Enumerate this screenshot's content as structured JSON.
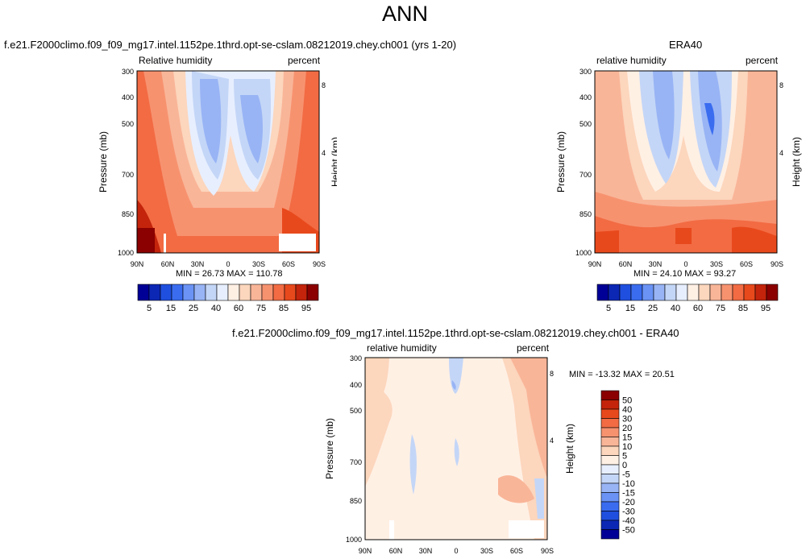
{
  "title": "ANN",
  "panels": [
    {
      "title": "f.e21.F2000climo.f09_f09_mg17.intel.1152pe.1thrd.opt-se-cslam.08212019.chey.ch001 (yrs 1-20)",
      "left_label": "Relative humidity",
      "right_label": "percent",
      "min_max": "MIN =  26.73   MAX = 110.78"
    },
    {
      "title": "ERA40",
      "left_label": "relative humidity",
      "right_label": "percent",
      "min_max": "MIN =  24.10   MAX =  93.27"
    },
    {
      "title": "f.e21.F2000climo.f09_f09_mg17.intel.1152pe.1thrd.opt-se-cslam.08212019.chey.ch001 - ERA40",
      "left_label": "relative humidity",
      "right_label": "percent",
      "min_max": "MIN = -13.32   MAX =  20.51"
    }
  ],
  "axes": {
    "ylabel": "Pressure (mb)",
    "y2label": "Height (km)",
    "x_ticks": [
      "90N",
      "60N",
      "30N",
      "0",
      "30S",
      "60S",
      "90S"
    ],
    "y_ticks": [
      "300",
      "400",
      "500",
      "700",
      "850",
      "1000"
    ],
    "y2_ticks": [
      "8",
      "4"
    ]
  },
  "colorbar_abs": {
    "labels": [
      "5",
      "15",
      "25",
      "40",
      "60",
      "75",
      "85",
      "95"
    ],
    "colors": [
      "#000096",
      "#0c27b4",
      "#1f4fde",
      "#3a6cf0",
      "#6a93f5",
      "#98b4f5",
      "#c4d6f7",
      "#e7efff",
      "#fff0e4",
      "#fcd6bd",
      "#f9b598",
      "#f7926f",
      "#f26b43",
      "#e8491c",
      "#c3240b",
      "#8b0000"
    ]
  },
  "colorbar_diff": {
    "labels": [
      "50",
      "40",
      "30",
      "20",
      "15",
      "10",
      "5",
      "0",
      "-5",
      "-10",
      "-15",
      "-20",
      "-30",
      "-40",
      "-50"
    ],
    "colors": [
      "#8b0000",
      "#c3240b",
      "#e8491c",
      "#f26b43",
      "#f7926f",
      "#f9b598",
      "#fcd6bd",
      "#fff0e4",
      "#e7efff",
      "#c4d6f7",
      "#98b4f5",
      "#6a93f5",
      "#3a6cf0",
      "#1f4fde",
      "#0c27b4",
      "#000096"
    ]
  },
  "chart_data": [
    {
      "type": "heatmap",
      "title": "f.e21.F2000climo.f09_f09_mg17.intel.1152pe.1thrd.opt-se-cslam.08212019.chey.ch001 (yrs 1-20)",
      "field": "Relative humidity (percent), zonal mean",
      "x": [
        90,
        60,
        30,
        0,
        -30,
        -60,
        -90
      ],
      "y_pressure_mb": [
        300,
        400,
        500,
        700,
        850,
        1000
      ],
      "min": 26.73,
      "max": 110.78,
      "xlabel": "",
      "ylabel": "Pressure (mb)",
      "y2label": "Height (km)",
      "ylim": [
        1000,
        300
      ]
    },
    {
      "type": "heatmap",
      "title": "ERA40",
      "field": "relative humidity (percent), zonal mean",
      "x": [
        90,
        60,
        30,
        0,
        -30,
        -60,
        -90
      ],
      "y_pressure_mb": [
        300,
        400,
        500,
        700,
        850,
        1000
      ],
      "min": 24.1,
      "max": 93.27,
      "xlabel": "",
      "ylabel": "Pressure (mb)",
      "y2label": "Height (km)",
      "ylim": [
        1000,
        300
      ]
    },
    {
      "type": "heatmap",
      "title": "f.e21.F2000climo.f09_f09_mg17.intel.1152pe.1thrd.opt-se-cslam.08212019.chey.ch001 - ERA40",
      "field": "relative humidity difference (percent)",
      "x": [
        90,
        60,
        30,
        0,
        -30,
        -60,
        -90
      ],
      "y_pressure_mb": [
        300,
        400,
        500,
        700,
        850,
        1000
      ],
      "min": -13.32,
      "max": 20.51,
      "xlabel": "",
      "ylabel": "Pressure (mb)",
      "y2label": "Height (km)",
      "ylim": [
        1000,
        300
      ]
    }
  ]
}
